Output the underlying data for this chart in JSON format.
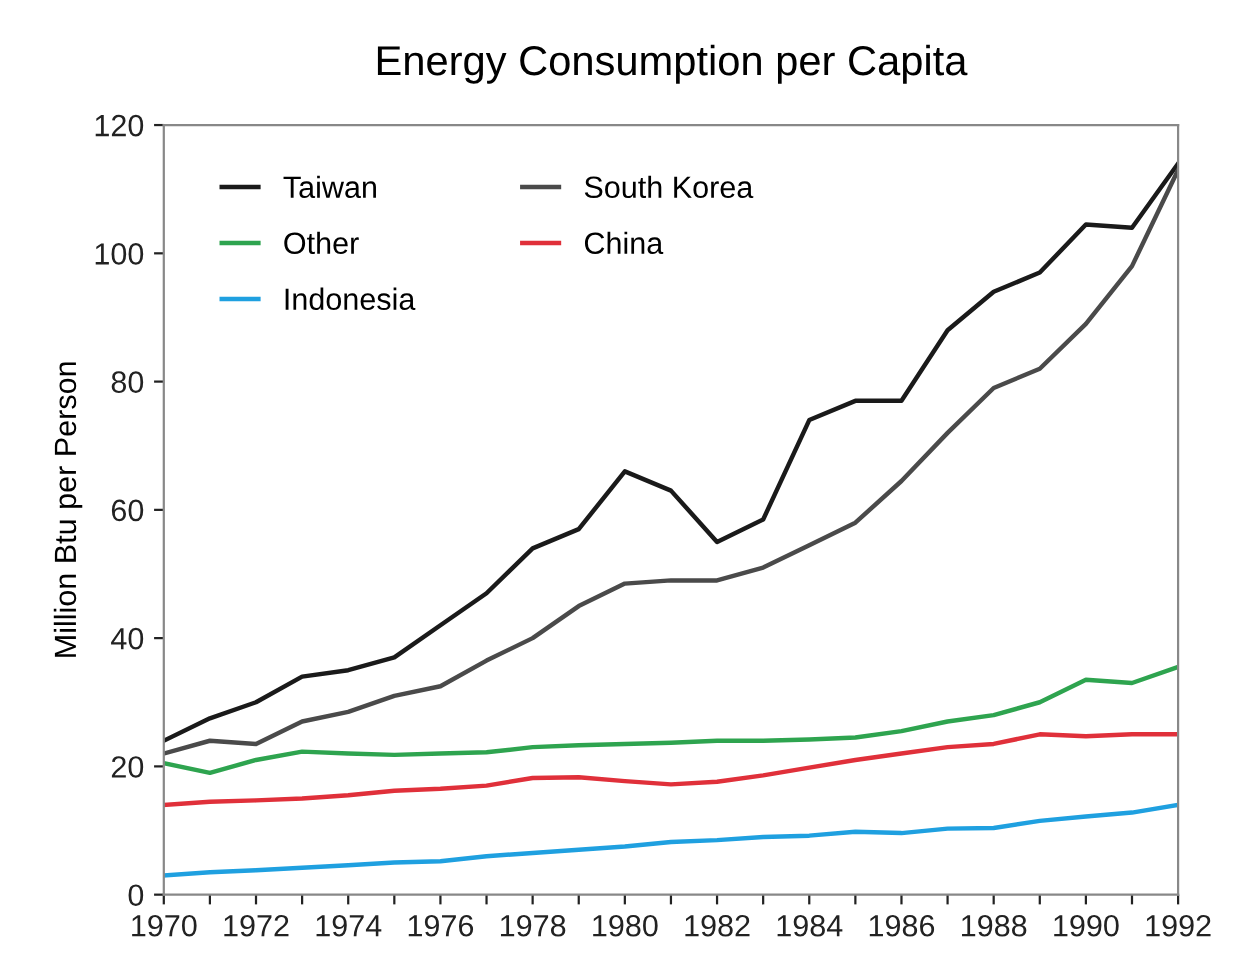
{
  "chart_data": {
    "type": "line",
    "title": "Energy Consumption per Capita",
    "ylabel": "Million Btu per Person",
    "x": [
      1970,
      1971,
      1972,
      1973,
      1974,
      1975,
      1976,
      1977,
      1978,
      1979,
      1980,
      1981,
      1982,
      1983,
      1984,
      1985,
      1986,
      1987,
      1988,
      1989,
      1990,
      1991,
      1992
    ],
    "series": [
      {
        "name": "Taiwan",
        "color": "#1a1a1a",
        "values": [
          24,
          27.5,
          30,
          34,
          35,
          37,
          42,
          47,
          54,
          57,
          66,
          63,
          55,
          58.5,
          74,
          77,
          77,
          88,
          94,
          97,
          104.5,
          104,
          114
        ]
      },
      {
        "name": "South Korea",
        "color": "#4a4a4a",
        "values": [
          22,
          24,
          23.5,
          27,
          28.5,
          31,
          32.5,
          36.5,
          40,
          45,
          48.5,
          49,
          49,
          51,
          54.5,
          58,
          64.5,
          72,
          79,
          82,
          89,
          98,
          113
        ]
      },
      {
        "name": "Other",
        "color": "#2ea44f",
        "values": [
          20.5,
          19,
          21,
          22.3,
          22,
          21.8,
          22,
          22.2,
          23,
          23.3,
          23.5,
          23.7,
          24,
          24,
          24.2,
          24.5,
          25.5,
          27,
          28,
          30,
          33.5,
          33,
          35.5
        ]
      },
      {
        "name": "China",
        "color": "#e0303a",
        "values": [
          14,
          14.5,
          14.7,
          15,
          15.5,
          16.2,
          16.5,
          17,
          18.2,
          18.3,
          17.7,
          17.2,
          17.6,
          18.6,
          19.8,
          21,
          22,
          23,
          23.5,
          25,
          24.7,
          25,
          25
        ]
      },
      {
        "name": "Indonesia",
        "color": "#1fa0e0",
        "values": [
          3,
          3.5,
          3.8,
          4.2,
          4.6,
          5,
          5.2,
          6,
          6.5,
          7,
          7.5,
          8.2,
          8.5,
          9,
          9.2,
          9.8,
          9.6,
          10.3,
          10.4,
          11.5,
          12.2,
          12.8,
          14
        ]
      }
    ],
    "xlim": [
      1970,
      1992
    ],
    "xticks": [
      1970,
      {
        "value": 1971,
        "label": null
      },
      1972,
      {
        "value": 1973,
        "label": null
      },
      1974,
      {
        "value": 1975,
        "label": null
      },
      1976,
      {
        "value": 1977,
        "label": null
      },
      1978,
      {
        "value": 1979,
        "label": null
      },
      1980,
      {
        "value": 1981,
        "label": null
      },
      1982,
      {
        "value": 1983,
        "label": null
      },
      1984,
      {
        "value": 1985,
        "label": null
      },
      1986,
      {
        "value": 1987,
        "label": null
      },
      1988,
      {
        "value": 1989,
        "label": null
      },
      1990,
      {
        "value": 1991,
        "label": null
      },
      1992
    ],
    "ylim": [
      0,
      120
    ],
    "yticks": [
      0,
      20,
      40,
      60,
      80,
      100,
      120
    ],
    "grid": false,
    "legend": "top left",
    "marker": "none",
    "line_style": "solid"
  }
}
